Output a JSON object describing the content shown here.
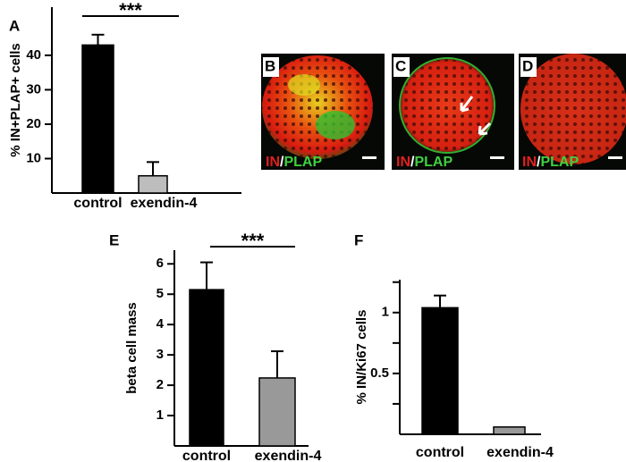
{
  "chart_data": [
    {
      "type": "bar",
      "panel": "A",
      "ylabel": "% IN+PLAP+ cells",
      "categories": [
        "control",
        "exendin-4"
      ],
      "values": [
        43,
        5
      ],
      "errors": [
        3,
        4
      ],
      "colors": [
        "#000000",
        "#bdbdbd"
      ],
      "ylim": [
        0,
        54
      ],
      "yticks": [
        10,
        20,
        30,
        40
      ],
      "annotation": "***"
    },
    {
      "type": "bar",
      "panel": "E",
      "ylabel": "beta cell mass",
      "categories": [
        "control",
        "exendin-4"
      ],
      "values": [
        5.15,
        2.24
      ],
      "errors": [
        0.9,
        0.88
      ],
      "colors": [
        "#000000",
        "#999999"
      ],
      "ylim": [
        0,
        6.45
      ],
      "yticks": [
        1,
        2,
        3,
        4,
        5,
        6
      ],
      "annotation": "***"
    },
    {
      "type": "bar",
      "panel": "F",
      "ylabel": "% IN/Ki67 cells",
      "categories": [
        "control",
        "exendin-4"
      ],
      "values": [
        1.04,
        0.06
      ],
      "errors": [
        0.1,
        0
      ],
      "colors": [
        "#000000",
        "#999999"
      ],
      "ylim": [
        0,
        1.27
      ],
      "yticks": [
        0.5,
        1
      ],
      "minor_yticks": [
        0.25,
        0.75,
        1.25
      ]
    }
  ],
  "images": [
    {
      "panel": "B",
      "stain_1": "IN",
      "separator": "/",
      "stain_2": "PLAP"
    },
    {
      "panel": "C",
      "stain_1": "IN",
      "separator": "/",
      "stain_2": "PLAP"
    },
    {
      "panel": "D",
      "stain_1": "IN",
      "separator": "/",
      "stain_2": "PLAP"
    }
  ]
}
